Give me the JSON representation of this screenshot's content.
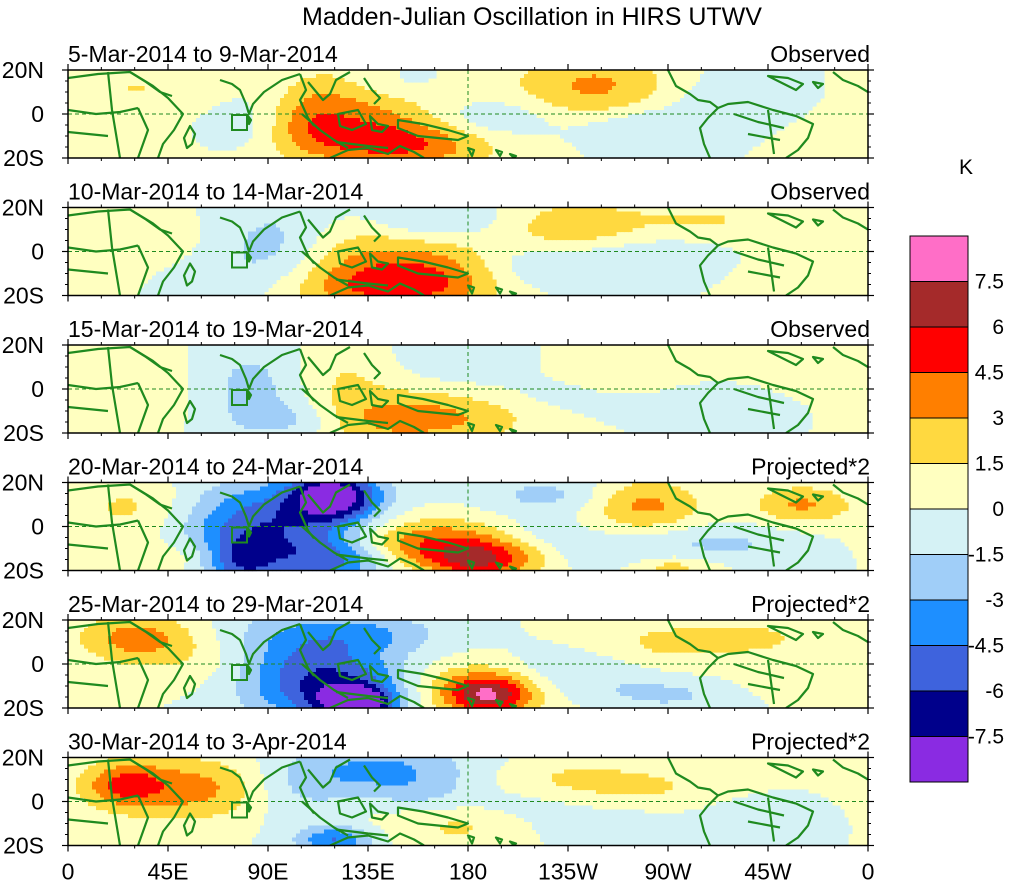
{
  "chart_data": {
    "type": "heatmap",
    "title": "Madden-Julian Oscillation in HIRS UTWV",
    "xlim": [
      0,
      360
    ],
    "ylim": [
      -20,
      20
    ],
    "x_ticks": [
      {
        "lon": 0,
        "label": "0"
      },
      {
        "lon": 45,
        "label": "45E"
      },
      {
        "lon": 90,
        "label": "90E"
      },
      {
        "lon": 135,
        "label": "135E"
      },
      {
        "lon": 180,
        "label": "180"
      },
      {
        "lon": 225,
        "label": "135W"
      },
      {
        "lon": 270,
        "label": "90W"
      },
      {
        "lon": 315,
        "label": "45W"
      },
      {
        "lon": 360,
        "label": "0"
      }
    ],
    "y_ticks": [
      {
        "lat": 20,
        "label": "20N"
      },
      {
        "lat": 0,
        "label": "0"
      },
      {
        "lat": -20,
        "label": "20S"
      }
    ],
    "colorbar": {
      "unit": "K",
      "levels": [
        "7.5",
        "6",
        "4.5",
        "3",
        "1.5",
        "0",
        "-1.5",
        "-3",
        "-4.5",
        "-6",
        "-7.5"
      ],
      "colors": [
        "#ff6ec7",
        "#a52a2a",
        "#ff0000",
        "#ff7f00",
        "#ffd940",
        "#ffffc0",
        "#d5f2f5",
        "#a0cef8",
        "#1e8fff",
        "#3e63dd",
        "#00008b",
        "#8a2be2"
      ]
    },
    "panels": [
      {
        "period": "5-Mar-2014 to 9-Mar-2014",
        "kind": "Observed",
        "blobs": [
          {
            "lon": 125,
            "lat": 4,
            "rl": 30,
            "rt": 14,
            "v": 3.6
          },
          {
            "lon": 150,
            "lat": -14,
            "rl": 30,
            "rt": 8,
            "v": 4.2
          },
          {
            "lon": 108,
            "lat": -4,
            "rl": 12,
            "rt": 10,
            "v": 1.8
          },
          {
            "lon": 238,
            "lat": 12,
            "rl": 26,
            "rt": 12,
            "v": 3.4
          },
          {
            "lon": 30,
            "lat": 12,
            "rl": 26,
            "rt": 10,
            "v": 1.5
          },
          {
            "lon": 175,
            "lat": 12,
            "rl": 18,
            "rt": 7,
            "v": 0.8
          },
          {
            "lon": 335,
            "lat": -8,
            "rl": 22,
            "rt": 12,
            "v": 0.7
          },
          {
            "lon": 45,
            "lat": -12,
            "rl": 25,
            "rt": 8,
            "v": 0.6
          },
          {
            "lon": 88,
            "lat": 4,
            "rl": 18,
            "rt": 12,
            "v": -1.5
          },
          {
            "lon": 150,
            "lat": 14,
            "rl": 22,
            "rt": 7,
            "v": -2.1
          },
          {
            "lon": 190,
            "lat": -2,
            "rl": 22,
            "rt": 7,
            "v": -1.9
          },
          {
            "lon": 255,
            "lat": -6,
            "rl": 20,
            "rt": 7,
            "v": -1.8
          },
          {
            "lon": 300,
            "lat": 5,
            "rl": 30,
            "rt": 12,
            "v": -1.2
          },
          {
            "lon": 70,
            "lat": -8,
            "rl": 15,
            "rt": 7,
            "v": -1.0
          }
        ]
      },
      {
        "period": "10-Mar-2014 to 14-Mar-2014",
        "kind": "Observed",
        "blobs": [
          {
            "lon": 145,
            "lat": -16,
            "rl": 32,
            "rt": 9,
            "v": 4.6
          },
          {
            "lon": 130,
            "lat": 2,
            "rl": 25,
            "rt": 12,
            "v": 2.6
          },
          {
            "lon": 172,
            "lat": -6,
            "rl": 18,
            "rt": 10,
            "v": 1.9
          },
          {
            "lon": 225,
            "lat": 11,
            "rl": 28,
            "rt": 9,
            "v": 2.8
          },
          {
            "lon": 290,
            "lat": 14,
            "rl": 22,
            "rt": 7,
            "v": 1.5
          },
          {
            "lon": 35,
            "lat": 2,
            "rl": 25,
            "rt": 12,
            "v": 0.9
          },
          {
            "lon": 330,
            "lat": -10,
            "rl": 25,
            "rt": 10,
            "v": 0.9
          },
          {
            "lon": 95,
            "lat": 2,
            "rl": 20,
            "rt": 14,
            "v": -2.7
          },
          {
            "lon": 165,
            "lat": 14,
            "rl": 28,
            "rt": 7,
            "v": -2.3
          },
          {
            "lon": 210,
            "lat": -6,
            "rl": 28,
            "rt": 8,
            "v": -1.6
          },
          {
            "lon": 265,
            "lat": -2,
            "rl": 25,
            "rt": 8,
            "v": -1.4
          },
          {
            "lon": 60,
            "lat": -12,
            "rl": 20,
            "rt": 8,
            "v": -0.9
          }
        ]
      },
      {
        "period": "15-Mar-2014 to 19-Mar-2014",
        "kind": "Observed",
        "blobs": [
          {
            "lon": 150,
            "lat": -14,
            "rl": 30,
            "rt": 8,
            "v": 3.4
          },
          {
            "lon": 120,
            "lat": 6,
            "rl": 20,
            "rt": 12,
            "v": 1.9
          },
          {
            "lon": 190,
            "lat": -10,
            "rl": 28,
            "rt": 9,
            "v": 1.2
          },
          {
            "lon": 245,
            "lat": 8,
            "rl": 30,
            "rt": 10,
            "v": 1.7
          },
          {
            "lon": 40,
            "lat": 2,
            "rl": 30,
            "rt": 14,
            "v": 0.9
          },
          {
            "lon": 320,
            "lat": 8,
            "rl": 25,
            "rt": 10,
            "v": 0.8
          },
          {
            "lon": 85,
            "lat": 2,
            "rl": 20,
            "rt": 14,
            "v": -2.6
          },
          {
            "lon": 100,
            "lat": -14,
            "rl": 18,
            "rt": 6,
            "v": -2.0
          },
          {
            "lon": 180,
            "lat": 14,
            "rl": 25,
            "rt": 7,
            "v": -1.4
          },
          {
            "lon": 220,
            "lat": -2,
            "rl": 25,
            "rt": 8,
            "v": -1.5
          },
          {
            "lon": 290,
            "lat": -4,
            "rl": 25,
            "rt": 8,
            "v": -1.2
          }
        ]
      },
      {
        "period": "20-Mar-2014 to 24-Mar-2014",
        "kind": "Projected*2",
        "blobs": [
          {
            "lon": 120,
            "lat": 14,
            "rl": 14,
            "rt": 8,
            "v": -8.0
          },
          {
            "lon": 90,
            "lat": 0,
            "rl": 28,
            "rt": 14,
            "v": -5.8
          },
          {
            "lon": 120,
            "lat": -14,
            "rl": 18,
            "rt": 8,
            "v": -5.2
          },
          {
            "lon": 78,
            "lat": -16,
            "rl": 12,
            "rt": 8,
            "v": -4.6
          },
          {
            "lon": 165,
            "lat": -8,
            "rl": 40,
            "rt": 8,
            "v": 4.8
          },
          {
            "lon": 185,
            "lat": -16,
            "rl": 16,
            "rt": 6,
            "v": 4.4
          },
          {
            "lon": 260,
            "lat": 10,
            "rl": 18,
            "rt": 8,
            "v": 3.4
          },
          {
            "lon": 330,
            "lat": 10,
            "rl": 15,
            "rt": 6,
            "v": 3.2
          },
          {
            "lon": 30,
            "lat": 8,
            "rl": 20,
            "rt": 10,
            "v": 2.0
          },
          {
            "lon": 215,
            "lat": 14,
            "rl": 20,
            "rt": 6,
            "v": -2.0
          },
          {
            "lon": 210,
            "lat": -4,
            "rl": 18,
            "rt": 6,
            "v": -2.2
          },
          {
            "lon": 245,
            "lat": -12,
            "rl": 20,
            "rt": 6,
            "v": -2.0
          },
          {
            "lon": 295,
            "lat": -8,
            "rl": 22,
            "rt": 6,
            "v": -1.8
          },
          {
            "lon": 55,
            "lat": -14,
            "rl": 18,
            "rt": 6,
            "v": 1.8
          },
          {
            "lon": 270,
            "lat": -18,
            "rl": 15,
            "rt": 4,
            "v": 2.4
          }
        ]
      },
      {
        "period": "25-Mar-2014 to 29-Mar-2014",
        "kind": "Projected*2",
        "blobs": [
          {
            "lon": 125,
            "lat": -14,
            "rl": 25,
            "rt": 10,
            "v": -5.4
          },
          {
            "lon": 130,
            "lat": -18,
            "rl": 10,
            "rt": 5,
            "v": -7.4
          },
          {
            "lon": 105,
            "lat": 4,
            "rl": 28,
            "rt": 14,
            "v": -4.3
          },
          {
            "lon": 140,
            "lat": 14,
            "rl": 22,
            "rt": 6,
            "v": -1.9
          },
          {
            "lon": 30,
            "lat": 12,
            "rl": 18,
            "rt": 8,
            "v": 3.6
          },
          {
            "lon": 180,
            "lat": -12,
            "rl": 25,
            "rt": 9,
            "v": 4.0
          },
          {
            "lon": 190,
            "lat": -14,
            "rl": 12,
            "rt": 6,
            "v": 4.8
          },
          {
            "lon": 65,
            "lat": 2,
            "rl": 22,
            "rt": 10,
            "v": 1.8
          },
          {
            "lon": 265,
            "lat": 8,
            "rl": 25,
            "rt": 9,
            "v": 1.8
          },
          {
            "lon": 310,
            "lat": 12,
            "rl": 22,
            "rt": 6,
            "v": 1.6
          },
          {
            "lon": 230,
            "lat": -4,
            "rl": 28,
            "rt": 8,
            "v": -1.8
          },
          {
            "lon": 270,
            "lat": -14,
            "rl": 20,
            "rt": 5,
            "v": -1.7
          },
          {
            "lon": 330,
            "lat": -6,
            "rl": 18,
            "rt": 6,
            "v": 1.2
          }
        ]
      },
      {
        "period": "30-Mar-2014 to 3-Apr-2014",
        "kind": "Projected*2",
        "blobs": [
          {
            "lon": 55,
            "lat": 6,
            "rl": 30,
            "rt": 10,
            "v": 3.8
          },
          {
            "lon": 25,
            "lat": 8,
            "rl": 12,
            "rt": 7,
            "v": 3.2
          },
          {
            "lon": 140,
            "lat": 14,
            "rl": 30,
            "rt": 9,
            "v": -3.4
          },
          {
            "lon": 120,
            "lat": -18,
            "rl": 12,
            "rt": 5,
            "v": -4.6
          },
          {
            "lon": 100,
            "lat": 4,
            "rl": 18,
            "rt": 10,
            "v": -1.8
          },
          {
            "lon": 180,
            "lat": -8,
            "rl": 28,
            "rt": 9,
            "v": 2.2
          },
          {
            "lon": 225,
            "lat": 10,
            "rl": 25,
            "rt": 8,
            "v": 1.6
          },
          {
            "lon": 270,
            "lat": 6,
            "rl": 25,
            "rt": 8,
            "v": 1.3
          },
          {
            "lon": 200,
            "lat": -2,
            "rl": 22,
            "rt": 6,
            "v": -1.8
          },
          {
            "lon": 240,
            "lat": -12,
            "rl": 25,
            "rt": 6,
            "v": -1.6
          },
          {
            "lon": 310,
            "lat": -6,
            "rl": 20,
            "rt": 6,
            "v": -1.3
          },
          {
            "lon": 160,
            "lat": 2,
            "rl": 15,
            "rt": 6,
            "v": -1.4
          }
        ]
      }
    ]
  }
}
